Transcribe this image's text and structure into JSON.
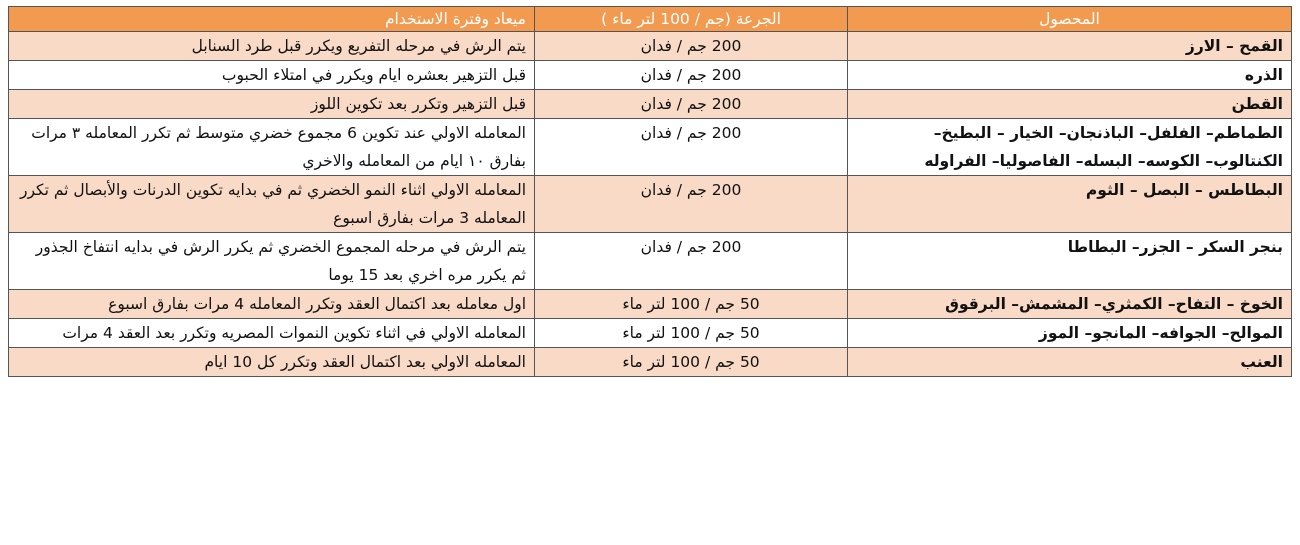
{
  "table": {
    "header": [
      "المحصول",
      "الجرعة (جم / 100 لتر ماء )",
      "ميعاد وفترة الاستخدام"
    ],
    "rows": [
      [
        "القمح – الارز",
        "200 جم / فدان",
        "يتم الرش في مرحله التفريع ويكرر قبل طرد السنابل"
      ],
      [
        "الذره",
        "200 جم / فدان",
        "قبل التزهير بعشره ايام ويكرر في امتلاء الحبوب"
      ],
      [
        "القطن",
        "200 جم / فدان",
        "قبل التزهير وتكرر بعد تكوين اللوز"
      ],
      [
        "الطماطم– الفلفل– الباذنجان– الخيار – البطيخ– الكنتالوب– الكوسه– البسله– الفاصوليا– الفراوله",
        "200 جم / فدان",
        "المعامله الاولي عند تكوين 6 مجموع خضري متوسط ثم تكرر المعامله ٣ مرات بفارق ١٠ ايام من المعامله والاخري"
      ],
      [
        "البطاطس – البصل – الثوم",
        "200 جم / فدان",
        "المعامله الاولي اثناء النمو الخضري ثم في بدايه تكوين الدرنات والأبصال ثم تكرر المعامله 3 مرات بفارق اسبوع"
      ],
      [
        "بنجر السكر – الجزر– البطاطا",
        "200 جم / فدان",
        "يتم الرش في مرحله المجموع الخضري ثم يكرر الرش في بدايه انتفاخ الجذور ثم يكرر مره اخري بعد 15 يوما"
      ],
      [
        "الخوخ – التفاح– الكمثري– المشمش– البرقوق",
        "50 جم / 100 لتر ماء",
        "اول معامله بعد اكتمال العقد وتكرر المعامله 4 مرات بفارق اسبوع"
      ],
      [
        "الموالح– الجوافه– المانجو– الموز",
        "50 جم / 100 لتر ماء",
        "المعامله الاولي في اثناء تكوين النموات المصريه وتكرر بعد العقد 4 مرات"
      ],
      [
        "العنب",
        "50 جم / 100 لتر ماء",
        "المعامله الاولي بعد اكتمال العقد وتكرر كل 10 ايام"
      ]
    ]
  }
}
